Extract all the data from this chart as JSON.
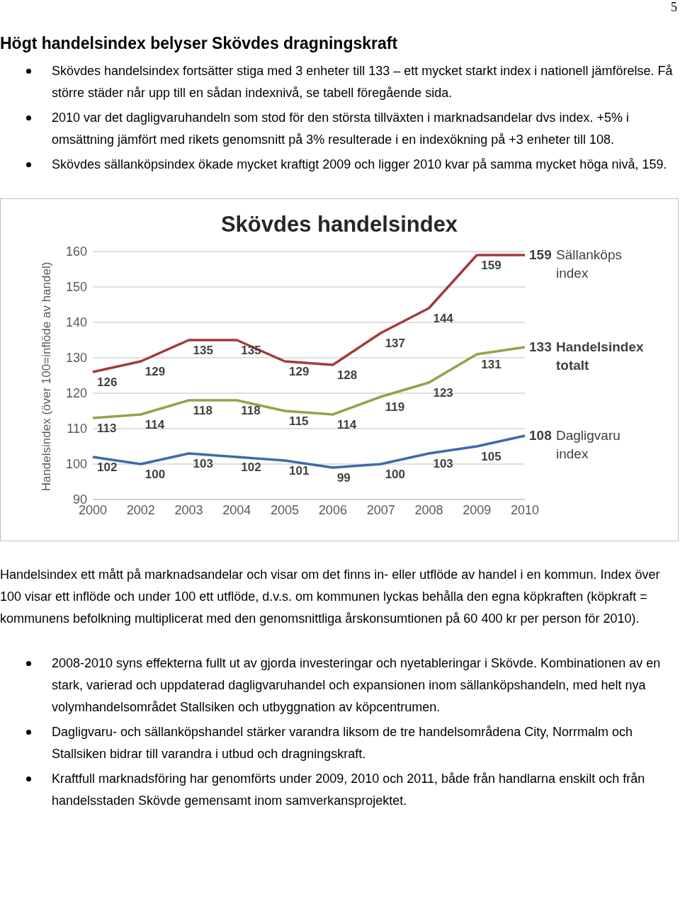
{
  "chart_data": {
    "type": "line",
    "title": "Skövdes handelsindex",
    "ylabel": "Handelsindex (över 100=inflöde av handel)",
    "categories": [
      "2000",
      "2002",
      "2003",
      "2004",
      "2005",
      "2006",
      "2007",
      "2008",
      "2009",
      "2010"
    ],
    "series": [
      {
        "name": "Sällanköps index",
        "color": "#a33b3d",
        "values": [
          126,
          129,
          135,
          135,
          129,
          128,
          137,
          144,
          159,
          159
        ]
      },
      {
        "name": "Handelsindex totalt",
        "color": "#8ba64c",
        "values": [
          113,
          114,
          118,
          118,
          115,
          114,
          119,
          123,
          131,
          133
        ]
      },
      {
        "name": "Dagligvaru index",
        "color": "#3e6ba8",
        "values": [
          102,
          100,
          103,
          102,
          101,
          99,
          100,
          103,
          105,
          108
        ]
      }
    ],
    "ylim": [
      90,
      160
    ],
    "yticks": [
      90,
      100,
      110,
      120,
      130,
      140,
      150,
      160
    ],
    "grid": "y",
    "data_labels": true,
    "annotations": [
      "5",
      "Högt handelsindex belyser Skövdes dragningskraft",
      "Skövdes handelsindex fortsätter stiga med 3 enheter till 133 – ett mycket starkt index i nationell jämförelse. Få större städer når upp till en sådan indexnivå, se tabell föregående sida.",
      "2010 var det dagligvaruhandeln som stod för den största tillväxten i marknadsandelar dvs index. +5% i omsättning jämfört med rikets genomsnitt på 3% resulterade i en indexökning på +3 enheter till 108.",
      "Skövdes sällanköpsindex ökade mycket kraftigt 2009 och ligger 2010 kvar på samma mycket höga nivå, 159.",
      "Handelsindex ett mått på marknadsandelar och visar om det finns in- eller utflöde av handel i en kommun. Index över 100 visar ett inflöde och under 100 ett utflöde, d.v.s. om kommunen lyckas behålla den egna köpkraften (köpkraft = kommunens befolkning multiplicerat med den genomsnittliga årskonsumtionen på 60 400 kr per person för 2010).",
      "2008-2010 syns effekterna fullt ut av gjorda investeringar och nyetableringar i Skövde. Kombinationen av en stark, varierad och uppdaterad dagligvaruhandel och expansionen inom sällanköpshandeln, med helt nya volymhandelsområdet Stallsiken och utbyggnation av köpcentrumen.",
      "Dagligvaru- och sällanköpshandel stärker varandra liksom de tre handelsområdena City, Norrmalm och Stallsiken bidrar till varandra i utbud och dragningskraft.",
      "Kraftfull marknadsföring har genomförts under 2009, 2010 och 2011, både från handlarna enskilt och från handelsstaden Skövde gemensamt inom samverkansprojektet."
    ]
  }
}
